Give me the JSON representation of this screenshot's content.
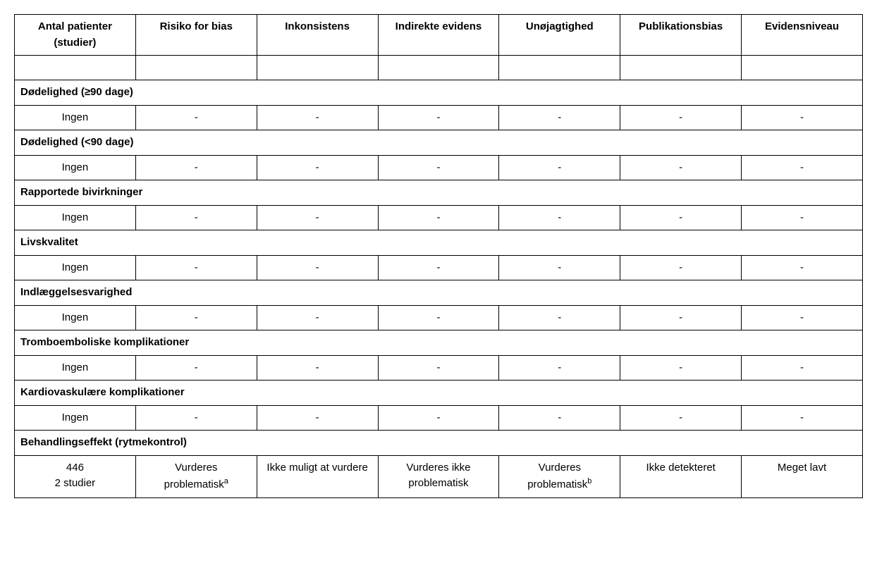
{
  "table": {
    "background_color": "#ffffff",
    "border_color": "#000000",
    "font_family": "Arial",
    "header_fontsize": 15,
    "cell_fontsize": 15,
    "columns": [
      "Antal patienter (studier)",
      "Risiko for bias",
      "Inkonsistens",
      "Indirekte evidens",
      "Unøjagtighed",
      "Publikationsbias",
      "Evidensniveau"
    ],
    "sections": [
      {
        "title": "Dødelighed (≥90 dage)",
        "row": [
          "Ingen",
          "-",
          "-",
          "-",
          "-",
          "-",
          "-"
        ]
      },
      {
        "title": "Dødelighed (<90 dage)",
        "row": [
          "Ingen",
          "-",
          "-",
          "-",
          "-",
          "-",
          "-"
        ]
      },
      {
        "title": "Rapportede bivirkninger",
        "row": [
          "Ingen",
          "-",
          "-",
          "-",
          "-",
          "-",
          "-"
        ]
      },
      {
        "title": "Livskvalitet",
        "row": [
          "Ingen",
          "-",
          "-",
          "-",
          "-",
          "-",
          "-"
        ]
      },
      {
        "title": "Indlæggelsesvarighed",
        "row": [
          "Ingen",
          "-",
          "-",
          "-",
          "-",
          "-",
          "-"
        ]
      },
      {
        "title": "Tromboemboliske komplikationer",
        "row": [
          "Ingen",
          "-",
          "-",
          "-",
          "-",
          "-",
          "-"
        ]
      },
      {
        "title": "Kardiovaskulære komplikationer",
        "row": [
          "Ingen",
          "-",
          "-",
          "-",
          "-",
          "-",
          "-"
        ]
      },
      {
        "title": "Behandlingseffekt (rytmekontrol)",
        "row_special": {
          "col1_line1": "446",
          "col1_line2": "2 studier",
          "col2": "Vurderes problematisk",
          "col2_sup": "a",
          "col3": "Ikke muligt at vurdere",
          "col4": "Vurderes ikke problematisk",
          "col5": "Vurderes problematisk",
          "col5_sup": "b",
          "col6": "Ikke detekteret",
          "col7": "Meget lavt"
        }
      }
    ],
    "column_widths_pct": [
      14.3,
      14.3,
      14.3,
      14.3,
      14.3,
      14.3,
      14.3
    ],
    "text_align_header": "center",
    "text_align_section": "left",
    "text_align_data": "center",
    "dash": "-",
    "ingen": "Ingen",
    "gte_symbol": "≥"
  }
}
